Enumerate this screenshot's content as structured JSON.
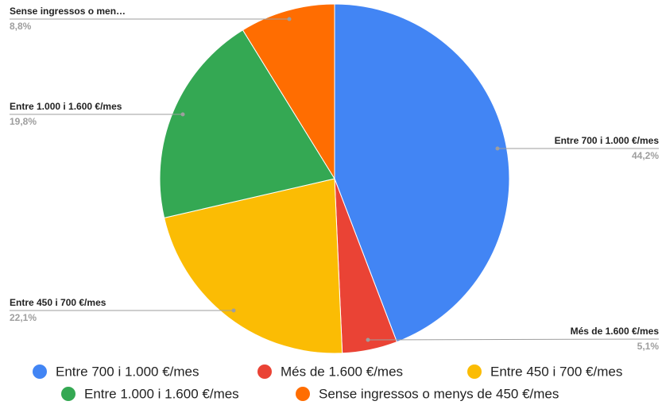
{
  "chart_data": {
    "type": "pie",
    "categories": [
      "Entre 700 i 1.000 €/mes",
      "Més de 1.600 €/mes",
      "Entre 450 i 700 €/mes",
      "Entre 1.000 i 1.600 €/mes",
      "Sense ingressos o menys de 450 €/mes"
    ],
    "callout_labels": [
      "Entre 700 i 1.000 €/mes",
      "Més de 1.600 €/mes",
      "Entre 450 i 700 €/mes",
      "Entre 1.000 i 1.600 €/mes",
      "Sense ingressos o men…"
    ],
    "values": [
      44.2,
      5.1,
      22.1,
      19.8,
      8.8
    ],
    "value_labels": [
      "44,2%",
      "5,1%",
      "22,1%",
      "19,8%",
      "8,8%"
    ],
    "colors": [
      "#4285f4",
      "#ea4335",
      "#fbbc04",
      "#34a853",
      "#ff6d01"
    ],
    "legend": "bottom"
  }
}
